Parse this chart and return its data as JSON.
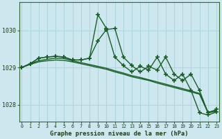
{
  "bg_color": "#cce8ee",
  "grid_color": "#aad4dc",
  "line_color": "#1a5c2a",
  "title": "Graphe pression niveau de la mer (hPa)",
  "ylim": [
    1027.55,
    1030.75
  ],
  "yticks": [
    1028,
    1029,
    1030
  ],
  "xticks": [
    0,
    1,
    2,
    3,
    4,
    5,
    6,
    7,
    8,
    9,
    10,
    11,
    12,
    13,
    14,
    15,
    16,
    17,
    18,
    19,
    20,
    21,
    22,
    23
  ],
  "series": [
    {
      "x": [
        0,
        1,
        2,
        3,
        4,
        5,
        6,
        7,
        8,
        9,
        10,
        11,
        12,
        13,
        14,
        15,
        16,
        17,
        18,
        19,
        20,
        21,
        22,
        23
      ],
      "y": [
        1029.0,
        1029.08,
        1029.15,
        1029.18,
        1029.2,
        1029.19,
        1029.15,
        1029.1,
        1029.05,
        1029.0,
        1028.95,
        1028.88,
        1028.82,
        1028.75,
        1028.7,
        1028.65,
        1028.58,
        1028.52,
        1028.46,
        1028.4,
        1028.34,
        1028.28,
        1027.78,
        1027.82
      ],
      "marker": false,
      "lw": 1.0
    },
    {
      "x": [
        0,
        1,
        2,
        3,
        4,
        5,
        6,
        7,
        8,
        9,
        10,
        11,
        12,
        13,
        14,
        15,
        16,
        17,
        18,
        19,
        20,
        21,
        22,
        23
      ],
      "y": [
        1029.0,
        1029.1,
        1029.18,
        1029.22,
        1029.25,
        1029.24,
        1029.18,
        1029.13,
        1029.08,
        1029.03,
        1028.98,
        1028.91,
        1028.85,
        1028.78,
        1028.73,
        1028.67,
        1028.61,
        1028.55,
        1028.49,
        1028.43,
        1028.37,
        1028.3,
        1027.8,
        1027.84
      ],
      "marker": false,
      "lw": 1.0
    },
    {
      "x": [
        0,
        1,
        2,
        3,
        4,
        5,
        6,
        7,
        8,
        9,
        10,
        11,
        12,
        13,
        14,
        15,
        16,
        17,
        18,
        19,
        20,
        21,
        22,
        23
      ],
      "y": [
        1029.0,
        1029.1,
        1029.25,
        1029.28,
        1029.3,
        1029.28,
        1029.2,
        1029.2,
        1029.25,
        1029.72,
        1030.02,
        1030.05,
        1029.28,
        1029.05,
        1028.88,
        1029.03,
        1028.93,
        1029.28,
        1028.82,
        1028.65,
        1028.82,
        1028.38,
        1027.78,
        1027.87
      ],
      "marker": true,
      "lw": 1.0
    },
    {
      "x": [
        0,
        1,
        2,
        3,
        4,
        5,
        6,
        7,
        8,
        9,
        10,
        11,
        12,
        13,
        14,
        15,
        16,
        17,
        18,
        19,
        20,
        21,
        22,
        23
      ],
      "y": [
        1029.0,
        1029.1,
        1029.25,
        1029.28,
        1029.3,
        1029.28,
        1029.2,
        1029.2,
        1029.25,
        1030.42,
        1030.05,
        1029.28,
        1029.05,
        1028.88,
        1029.03,
        1028.93,
        1029.28,
        1028.82,
        1028.65,
        1028.82,
        1028.38,
        1027.78,
        1027.72,
        1027.8
      ],
      "marker": true,
      "lw": 1.0
    }
  ]
}
